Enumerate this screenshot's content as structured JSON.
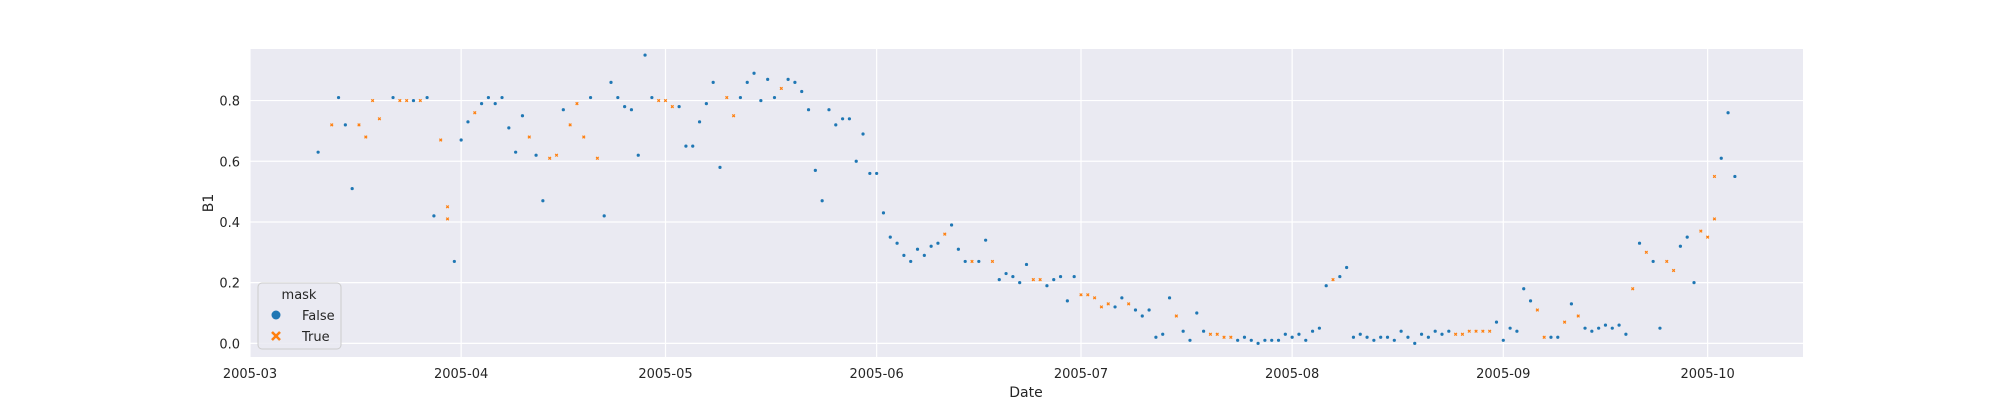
{
  "chart_data": {
    "type": "scatter",
    "xlabel": "Date",
    "ylabel": "B1",
    "xlim": [
      "2005-03-01",
      "2005-10-15"
    ],
    "ylim": [
      -0.045,
      0.97
    ],
    "x_ticks": [
      "2005-03",
      "2005-04",
      "2005-05",
      "2005-06",
      "2005-07",
      "2005-08",
      "2005-09",
      "2005-10"
    ],
    "y_ticks": [
      "0.0",
      "0.2",
      "0.4",
      "0.6",
      "0.8"
    ],
    "y_tick_values": [
      0.0,
      0.2,
      0.4,
      0.6,
      0.8
    ],
    "grid": true,
    "legend": {
      "title": "mask",
      "placement": "lower-left",
      "entries": [
        {
          "label": "False",
          "marker": "circle",
          "color": "#1f77b4"
        },
        {
          "label": "True",
          "marker": "x",
          "color": "#ff7f0e"
        }
      ]
    },
    "series": [
      {
        "name": "False",
        "color": "#1f77b4",
        "marker": "circle",
        "points": [
          [
            "2005-03-11",
            0.63
          ],
          [
            "2005-03-14",
            0.81
          ],
          [
            "2005-03-15",
            0.72
          ],
          [
            "2005-03-16",
            0.51
          ],
          [
            "2005-03-22",
            0.81
          ],
          [
            "2005-03-25",
            0.8
          ],
          [
            "2005-03-27",
            0.81
          ],
          [
            "2005-03-28",
            0.42
          ],
          [
            "2005-03-31",
            0.27
          ],
          [
            "2005-04-01",
            0.67
          ],
          [
            "2005-04-02",
            0.73
          ],
          [
            "2005-04-04",
            0.79
          ],
          [
            "2005-04-05",
            0.81
          ],
          [
            "2005-04-06",
            0.79
          ],
          [
            "2005-04-07",
            0.81
          ],
          [
            "2005-04-08",
            0.71
          ],
          [
            "2005-04-09",
            0.63
          ],
          [
            "2005-04-10",
            0.75
          ],
          [
            "2005-04-12",
            0.62
          ],
          [
            "2005-04-13",
            0.47
          ],
          [
            "2005-04-16",
            0.77
          ],
          [
            "2005-04-20",
            0.81
          ],
          [
            "2005-04-22",
            0.42
          ],
          [
            "2005-04-23",
            0.86
          ],
          [
            "2005-04-24",
            0.81
          ],
          [
            "2005-04-25",
            0.78
          ],
          [
            "2005-04-26",
            0.77
          ],
          [
            "2005-04-27",
            0.62
          ],
          [
            "2005-04-28",
            0.95
          ],
          [
            "2005-04-29",
            0.81
          ],
          [
            "2005-05-03",
            0.78
          ],
          [
            "2005-05-04",
            0.65
          ],
          [
            "2005-05-05",
            0.65
          ],
          [
            "2005-05-06",
            0.73
          ],
          [
            "2005-05-07",
            0.79
          ],
          [
            "2005-05-08",
            0.86
          ],
          [
            "2005-05-09",
            0.58
          ],
          [
            "2005-05-12",
            0.81
          ],
          [
            "2005-05-13",
            0.86
          ],
          [
            "2005-05-14",
            0.89
          ],
          [
            "2005-05-15",
            0.8
          ],
          [
            "2005-05-16",
            0.87
          ],
          [
            "2005-05-17",
            0.81
          ],
          [
            "2005-05-19",
            0.87
          ],
          [
            "2005-05-20",
            0.86
          ],
          [
            "2005-05-21",
            0.83
          ],
          [
            "2005-05-22",
            0.77
          ],
          [
            "2005-05-23",
            0.57
          ],
          [
            "2005-05-24",
            0.47
          ],
          [
            "2005-05-25",
            0.77
          ],
          [
            "2005-05-26",
            0.72
          ],
          [
            "2005-05-27",
            0.74
          ],
          [
            "2005-05-28",
            0.74
          ],
          [
            "2005-05-29",
            0.6
          ],
          [
            "2005-05-30",
            0.69
          ],
          [
            "2005-05-31",
            0.56
          ],
          [
            "2005-06-01",
            0.56
          ],
          [
            "2005-06-02",
            0.43
          ],
          [
            "2005-06-03",
            0.35
          ],
          [
            "2005-06-04",
            0.33
          ],
          [
            "2005-06-05",
            0.29
          ],
          [
            "2005-06-06",
            0.27
          ],
          [
            "2005-06-07",
            0.31
          ],
          [
            "2005-06-08",
            0.29
          ],
          [
            "2005-06-09",
            0.32
          ],
          [
            "2005-06-10",
            0.33
          ],
          [
            "2005-06-12",
            0.39
          ],
          [
            "2005-06-13",
            0.31
          ],
          [
            "2005-06-14",
            0.27
          ],
          [
            "2005-06-16",
            0.27
          ],
          [
            "2005-06-17",
            0.34
          ],
          [
            "2005-06-19",
            0.21
          ],
          [
            "2005-06-20",
            0.23
          ],
          [
            "2005-06-21",
            0.22
          ],
          [
            "2005-06-22",
            0.2
          ],
          [
            "2005-06-23",
            0.26
          ],
          [
            "2005-06-26",
            0.19
          ],
          [
            "2005-06-27",
            0.21
          ],
          [
            "2005-06-28",
            0.22
          ],
          [
            "2005-06-29",
            0.14
          ],
          [
            "2005-06-30",
            0.22
          ],
          [
            "2005-07-06",
            0.12
          ],
          [
            "2005-07-07",
            0.15
          ],
          [
            "2005-07-09",
            0.11
          ],
          [
            "2005-07-10",
            0.09
          ],
          [
            "2005-07-11",
            0.11
          ],
          [
            "2005-07-12",
            0.02
          ],
          [
            "2005-07-13",
            0.03
          ],
          [
            "2005-07-14",
            0.15
          ],
          [
            "2005-07-16",
            0.04
          ],
          [
            "2005-07-17",
            0.01
          ],
          [
            "2005-07-18",
            0.1
          ],
          [
            "2005-07-19",
            0.04
          ],
          [
            "2005-07-24",
            0.01
          ],
          [
            "2005-07-25",
            0.02
          ],
          [
            "2005-07-26",
            0.01
          ],
          [
            "2005-07-27",
            0.0
          ],
          [
            "2005-07-28",
            0.01
          ],
          [
            "2005-07-29",
            0.01
          ],
          [
            "2005-07-30",
            0.01
          ],
          [
            "2005-07-31",
            0.03
          ],
          [
            "2005-08-01",
            0.02
          ],
          [
            "2005-08-02",
            0.03
          ],
          [
            "2005-08-03",
            0.01
          ],
          [
            "2005-08-04",
            0.04
          ],
          [
            "2005-08-05",
            0.05
          ],
          [
            "2005-08-06",
            0.19
          ],
          [
            "2005-08-08",
            0.22
          ],
          [
            "2005-08-09",
            0.25
          ],
          [
            "2005-08-10",
            0.02
          ],
          [
            "2005-08-11",
            0.03
          ],
          [
            "2005-08-12",
            0.02
          ],
          [
            "2005-08-13",
            0.01
          ],
          [
            "2005-08-14",
            0.02
          ],
          [
            "2005-08-15",
            0.02
          ],
          [
            "2005-08-16",
            0.01
          ],
          [
            "2005-08-17",
            0.04
          ],
          [
            "2005-08-18",
            0.02
          ],
          [
            "2005-08-19",
            0.0
          ],
          [
            "2005-08-20",
            0.03
          ],
          [
            "2005-08-21",
            0.02
          ],
          [
            "2005-08-22",
            0.04
          ],
          [
            "2005-08-23",
            0.03
          ],
          [
            "2005-08-24",
            0.04
          ],
          [
            "2005-08-31",
            0.07
          ],
          [
            "2005-09-01",
            0.01
          ],
          [
            "2005-09-02",
            0.05
          ],
          [
            "2005-09-03",
            0.04
          ],
          [
            "2005-09-04",
            0.18
          ],
          [
            "2005-09-05",
            0.14
          ],
          [
            "2005-09-08",
            0.02
          ],
          [
            "2005-09-09",
            0.02
          ],
          [
            "2005-09-11",
            0.13
          ],
          [
            "2005-09-13",
            0.05
          ],
          [
            "2005-09-14",
            0.04
          ],
          [
            "2005-09-15",
            0.05
          ],
          [
            "2005-09-16",
            0.06
          ],
          [
            "2005-09-17",
            0.05
          ],
          [
            "2005-09-18",
            0.06
          ],
          [
            "2005-09-19",
            0.03
          ],
          [
            "2005-09-21",
            0.33
          ],
          [
            "2005-09-23",
            0.27
          ],
          [
            "2005-09-24",
            0.05
          ],
          [
            "2005-09-27",
            0.32
          ],
          [
            "2005-09-28",
            0.35
          ],
          [
            "2005-09-29",
            0.2
          ],
          [
            "2005-10-03",
            0.61
          ],
          [
            "2005-10-04",
            0.76
          ],
          [
            "2005-10-05",
            0.55
          ]
        ]
      },
      {
        "name": "True",
        "color": "#ff7f0e",
        "marker": "x",
        "points": [
          [
            "2005-03-13",
            0.72
          ],
          [
            "2005-03-17",
            0.72
          ],
          [
            "2005-03-18",
            0.68
          ],
          [
            "2005-03-19",
            0.8
          ],
          [
            "2005-03-20",
            0.74
          ],
          [
            "2005-03-23",
            0.8
          ],
          [
            "2005-03-24",
            0.8
          ],
          [
            "2005-03-26",
            0.8
          ],
          [
            "2005-03-29",
            0.67
          ],
          [
            "2005-03-30",
            0.41
          ],
          [
            "2005-03-30",
            0.45
          ],
          [
            "2005-04-03",
            0.76
          ],
          [
            "2005-04-11",
            0.68
          ],
          [
            "2005-04-14",
            0.61
          ],
          [
            "2005-04-15",
            0.62
          ],
          [
            "2005-04-17",
            0.72
          ],
          [
            "2005-04-18",
            0.79
          ],
          [
            "2005-04-19",
            0.68
          ],
          [
            "2005-04-21",
            0.61
          ],
          [
            "2005-04-30",
            0.8
          ],
          [
            "2005-05-01",
            0.8
          ],
          [
            "2005-05-02",
            0.78
          ],
          [
            "2005-05-10",
            0.81
          ],
          [
            "2005-05-11",
            0.75
          ],
          [
            "2005-05-18",
            0.84
          ],
          [
            "2005-06-11",
            0.36
          ],
          [
            "2005-06-15",
            0.27
          ],
          [
            "2005-06-18",
            0.27
          ],
          [
            "2005-06-24",
            0.21
          ],
          [
            "2005-06-25",
            0.21
          ],
          [
            "2005-07-01",
            0.16
          ],
          [
            "2005-07-02",
            0.16
          ],
          [
            "2005-07-03",
            0.15
          ],
          [
            "2005-07-04",
            0.12
          ],
          [
            "2005-07-05",
            0.13
          ],
          [
            "2005-07-08",
            0.13
          ],
          [
            "2005-07-15",
            0.09
          ],
          [
            "2005-07-20",
            0.03
          ],
          [
            "2005-07-21",
            0.03
          ],
          [
            "2005-07-22",
            0.02
          ],
          [
            "2005-07-23",
            0.02
          ],
          [
            "2005-08-07",
            0.21
          ],
          [
            "2005-08-25",
            0.03
          ],
          [
            "2005-08-26",
            0.03
          ],
          [
            "2005-08-27",
            0.04
          ],
          [
            "2005-08-28",
            0.04
          ],
          [
            "2005-08-29",
            0.04
          ],
          [
            "2005-08-30",
            0.04
          ],
          [
            "2005-09-06",
            0.11
          ],
          [
            "2005-09-07",
            0.02
          ],
          [
            "2005-09-10",
            0.07
          ],
          [
            "2005-09-12",
            0.09
          ],
          [
            "2005-09-20",
            0.18
          ],
          [
            "2005-09-22",
            0.3
          ],
          [
            "2005-09-25",
            0.27
          ],
          [
            "2005-09-26",
            0.24
          ],
          [
            "2005-09-30",
            0.37
          ],
          [
            "2005-10-01",
            0.35
          ],
          [
            "2005-10-02",
            0.41
          ],
          [
            "2005-10-02",
            0.55
          ]
        ]
      }
    ]
  }
}
